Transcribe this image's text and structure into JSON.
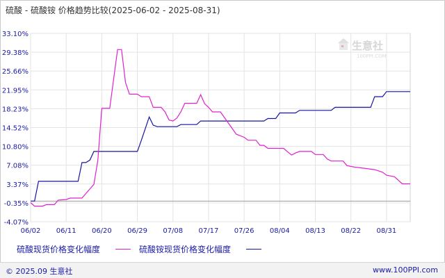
{
  "title": "硫酸 - 硫酸铵 价格趋势比较(2025-06-02 - 2025-08-31)",
  "watermark": "生意社",
  "watermark_url": "100PPI.COM",
  "footer": {
    "left": "© 2025.09 生意社",
    "right": "www.100PPI.com"
  },
  "colors": {
    "series_a": "#1414a0",
    "series_b": "#e020d0"
  },
  "chart_data": {
    "type": "line",
    "y_ticks": [
      "33.10%",
      "29.38%",
      "25.66%",
      "21.95%",
      "18.23%",
      "14.52%",
      "10.80%",
      "7.08%",
      "3.37%",
      "-0.35%",
      "-4.07%"
    ],
    "y_values": [
      33.1,
      29.38,
      25.66,
      21.95,
      18.23,
      14.52,
      10.8,
      7.08,
      3.37,
      -0.35,
      -4.07
    ],
    "ylim": [
      -4.07,
      33.1
    ],
    "x_ticks": [
      "06/02",
      "06/11",
      "06/20",
      "06/29",
      "07/08",
      "07/17",
      "07/26",
      "08/04",
      "08/13",
      "08/22",
      "08/31"
    ],
    "x_days": [
      0,
      9,
      18,
      27,
      36,
      45,
      54,
      63,
      72,
      81,
      90
    ],
    "grid": true,
    "legend_placement": "bottom",
    "series": [
      {
        "name": "硫酸铵现货价格变化幅度",
        "points": [
          [
            0,
            0
          ],
          [
            1,
            0
          ],
          [
            2,
            3.9
          ],
          [
            12,
            3.9
          ],
          [
            13,
            7.6
          ],
          [
            14,
            7.6
          ],
          [
            15,
            8.1
          ],
          [
            16,
            9.8
          ],
          [
            26,
            9.8
          ],
          [
            27,
            9.8
          ],
          [
            28,
            12.0
          ],
          [
            30,
            16.6
          ],
          [
            31,
            15.0
          ],
          [
            32,
            14.7
          ],
          [
            37,
            14.7
          ],
          [
            38,
            15.1
          ],
          [
            42,
            15.1
          ],
          [
            43,
            15.8
          ],
          [
            59,
            15.8
          ],
          [
            60,
            16.3
          ],
          [
            62,
            16.3
          ],
          [
            63,
            17.4
          ],
          [
            67,
            17.4
          ],
          [
            68,
            17.9
          ],
          [
            76,
            17.9
          ],
          [
            77,
            18.5
          ],
          [
            86,
            18.5
          ],
          [
            87,
            20.6
          ],
          [
            89,
            20.6
          ],
          [
            90,
            21.6
          ],
          [
            96,
            21.6
          ]
        ]
      },
      {
        "name": "硫酸现货价格变化幅度",
        "points": [
          [
            0,
            -0.3
          ],
          [
            1,
            -1.0
          ],
          [
            3,
            -1.0
          ],
          [
            4,
            -0.7
          ],
          [
            6,
            -0.7
          ],
          [
            7,
            0.2
          ],
          [
            9,
            0.3
          ],
          [
            10,
            0.6
          ],
          [
            13,
            0.6
          ],
          [
            14,
            1.5
          ],
          [
            16,
            3.3
          ],
          [
            17,
            8.0
          ],
          [
            18,
            18.3
          ],
          [
            20,
            18.3
          ],
          [
            22,
            29.9
          ],
          [
            23,
            29.9
          ],
          [
            24,
            23.4
          ],
          [
            25,
            21.1
          ],
          [
            27,
            21.1
          ],
          [
            28,
            20.6
          ],
          [
            30,
            20.6
          ],
          [
            31,
            18.5
          ],
          [
            33,
            18.5
          ],
          [
            34,
            17.6
          ],
          [
            35,
            16.0
          ],
          [
            36,
            15.8
          ],
          [
            37,
            16.4
          ],
          [
            38,
            17.6
          ],
          [
            39,
            19.3
          ],
          [
            42,
            19.3
          ],
          [
            43,
            21.0
          ],
          [
            44,
            19.2
          ],
          [
            45,
            18.5
          ],
          [
            46,
            17.6
          ],
          [
            48,
            17.6
          ],
          [
            52,
            13.2
          ],
          [
            54,
            12.6
          ],
          [
            55,
            12.0
          ],
          [
            57,
            12.0
          ],
          [
            58,
            11.0
          ],
          [
            59,
            11.0
          ],
          [
            60,
            10.4
          ],
          [
            64,
            10.4
          ],
          [
            65,
            9.7
          ],
          [
            66,
            9.1
          ],
          [
            67,
            9.5
          ],
          [
            68,
            9.8
          ],
          [
            71,
            9.8
          ],
          [
            72,
            9.2
          ],
          [
            74,
            9.2
          ],
          [
            75,
            8.3
          ],
          [
            76,
            7.9
          ],
          [
            79,
            7.9
          ],
          [
            80,
            7.0
          ],
          [
            82,
            6.7
          ],
          [
            84,
            6.5
          ],
          [
            87,
            6.2
          ],
          [
            89,
            5.7
          ],
          [
            90,
            5.1
          ],
          [
            92,
            4.8
          ],
          [
            94,
            3.4
          ],
          [
            96,
            3.4
          ]
        ]
      }
    ]
  }
}
